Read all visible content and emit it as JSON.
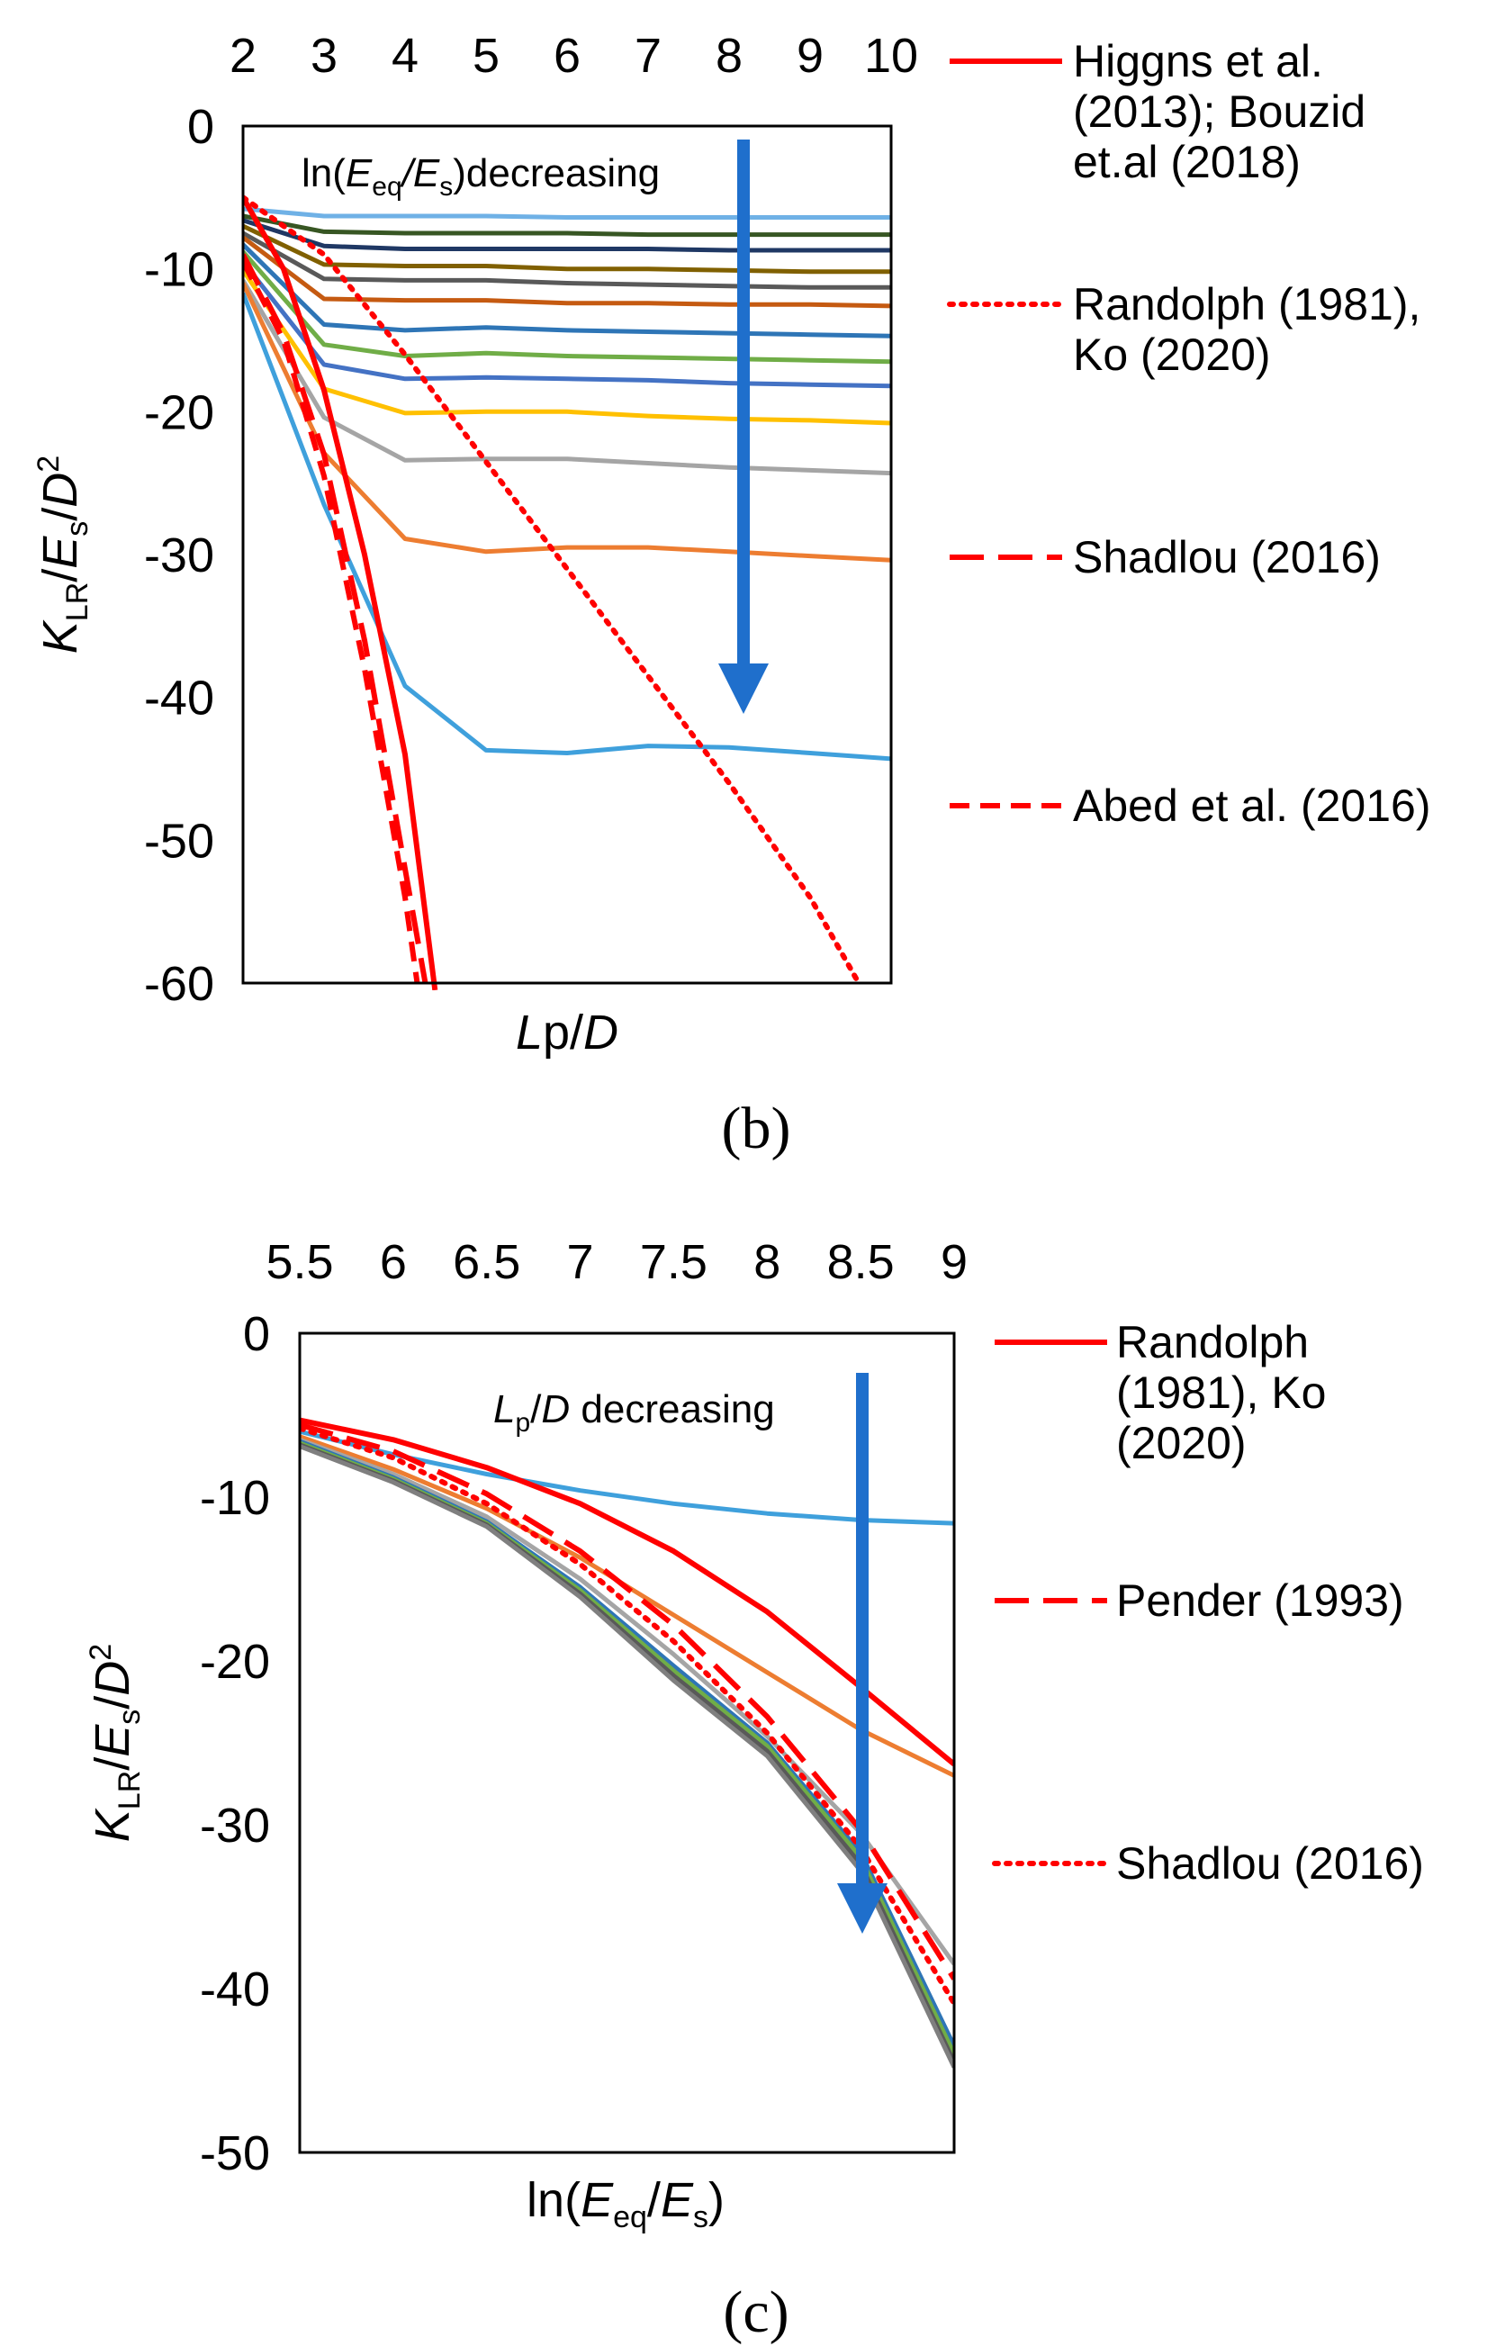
{
  "chart_data": [
    {
      "type": "line",
      "panel_label": "(b)",
      "x_axis": {
        "label_italic": "L",
        "label_rest": "p/",
        "label_italic2": "D",
        "range": [
          2,
          10
        ],
        "ticks": [
          "2",
          "3",
          "4",
          "5",
          "6",
          "7",
          "8",
          "9",
          "10"
        ],
        "tick_position": "top"
      },
      "y_axis": {
        "label_parts": [
          "K",
          "LR",
          "/",
          "E",
          "s",
          "/",
          "D",
          "2"
        ],
        "range": [
          -60,
          0
        ],
        "ticks": [
          "0",
          "-10",
          "-20",
          "-30",
          "-40",
          "-50",
          "-60"
        ]
      },
      "annotation": {
        "prefix": "ln(",
        "italic": "E",
        "sub1": "eq",
        "slash": "/",
        "italic2": "E",
        "sub2": "s",
        "suffix": ")decreasing"
      },
      "arrow_color": "#1f6fcc",
      "grid": false,
      "legend_position": "right",
      "series": [
        {
          "color": "#6fb1e6",
          "style": "solid",
          "x": [
            2,
            3,
            4,
            5,
            6,
            7,
            8,
            9,
            10
          ],
          "y": [
            -5.8,
            -6.3,
            -6.3,
            -6.3,
            -6.4,
            -6.4,
            -6.4,
            -6.4,
            -6.4
          ]
        },
        {
          "color": "#375623",
          "style": "solid",
          "x": [
            2,
            3,
            4,
            5,
            6,
            7,
            8,
            9,
            10
          ],
          "y": [
            -6.3,
            -7.4,
            -7.5,
            -7.5,
            -7.5,
            -7.6,
            -7.6,
            -7.6,
            -7.6
          ]
        },
        {
          "color": "#1f3864",
          "style": "solid",
          "x": [
            2,
            3,
            4,
            5,
            6,
            7,
            8,
            9,
            10
          ],
          "y": [
            -6.6,
            -8.4,
            -8.6,
            -8.6,
            -8.6,
            -8.6,
            -8.7,
            -8.7,
            -8.7
          ]
        },
        {
          "color": "#806000",
          "style": "solid",
          "x": [
            2,
            3,
            4,
            5,
            6,
            7,
            8,
            9,
            10
          ],
          "y": [
            -7.0,
            -9.7,
            -9.8,
            -9.8,
            -10.0,
            -10.0,
            -10.1,
            -10.2,
            -10.2
          ]
        },
        {
          "color": "#595959",
          "style": "solid",
          "x": [
            2,
            3,
            4,
            5,
            6,
            7,
            8,
            9,
            10
          ],
          "y": [
            -7.5,
            -10.7,
            -10.8,
            -10.8,
            -11.0,
            -11.1,
            -11.2,
            -11.3,
            -11.3
          ]
        },
        {
          "color": "#c55a11",
          "style": "solid",
          "x": [
            2,
            3,
            4,
            5,
            6,
            7,
            8,
            9,
            10
          ],
          "y": [
            -7.8,
            -12.1,
            -12.2,
            -12.2,
            -12.4,
            -12.4,
            -12.5,
            -12.5,
            -12.6
          ]
        },
        {
          "color": "#2e75b6",
          "style": "solid",
          "x": [
            2,
            3,
            4,
            5,
            6,
            7,
            8,
            9,
            10
          ],
          "y": [
            -8.3,
            -13.9,
            -14.3,
            -14.1,
            -14.3,
            -14.4,
            -14.5,
            -14.6,
            -14.7
          ]
        },
        {
          "color": "#70ad47",
          "style": "solid",
          "x": [
            2,
            3,
            4,
            5,
            6,
            7,
            8,
            9,
            10
          ],
          "y": [
            -8.8,
            -15.3,
            -16.1,
            -15.9,
            -16.1,
            -16.2,
            -16.3,
            -16.4,
            -16.5
          ]
        },
        {
          "color": "#4472c4",
          "style": "solid",
          "x": [
            2,
            3,
            4,
            5,
            6,
            7,
            8,
            9,
            10
          ],
          "y": [
            -9.5,
            -16.7,
            -17.7,
            -17.6,
            -17.7,
            -17.8,
            -18.0,
            -18.1,
            -18.2
          ]
        },
        {
          "color": "#ffc000",
          "style": "solid",
          "x": [
            2,
            3,
            4,
            5,
            6,
            7,
            8,
            9,
            10
          ],
          "y": [
            -10.1,
            -18.4,
            -20.1,
            -20.0,
            -20.0,
            -20.3,
            -20.5,
            -20.6,
            -20.8
          ]
        },
        {
          "color": "#a5a5a5",
          "style": "solid",
          "x": [
            2,
            3,
            4,
            5,
            6,
            7,
            8,
            9,
            10
          ],
          "y": [
            -10.8,
            -20.4,
            -23.4,
            -23.3,
            -23.3,
            -23.6,
            -23.9,
            -24.1,
            -24.3
          ]
        },
        {
          "color": "#ed7d31",
          "style": "solid",
          "x": [
            2,
            3,
            4,
            5,
            6,
            7,
            8,
            9,
            10
          ],
          "y": [
            -11.0,
            -22.9,
            -28.9,
            -29.8,
            -29.5,
            -29.5,
            -29.8,
            -30.1,
            -30.4
          ]
        },
        {
          "color": "#3fa0dc",
          "style": "solid",
          "x": [
            2,
            3,
            4,
            5,
            6,
            7,
            8,
            9,
            10
          ],
          "y": [
            -11.7,
            -26.5,
            -39.2,
            -43.7,
            -43.9,
            -43.4,
            -43.5,
            -43.9,
            -44.3
          ]
        },
        {
          "name": "Higgns et al. (2013);  Bouzid et.al (2018)",
          "legend_lines": [
            "Higgns et al.",
            "(2013);  Bouzid",
            "et.al (2018)"
          ],
          "color": "#ff0000",
          "style": "solid",
          "x": [
            2,
            2.5,
            3,
            3.5,
            4,
            4.37
          ],
          "y": [
            -5.0,
            -10.0,
            -18.5,
            -30.0,
            -44.0,
            -60.5
          ]
        },
        {
          "name": "Randolph (1981), Ko (2020)",
          "legend_lines": [
            "Randolph (1981),",
            "Ko (2020)"
          ],
          "color": "#ff0000",
          "style": "dotted",
          "x": [
            2,
            3,
            4,
            5,
            6,
            7,
            8,
            9,
            9.6
          ],
          "y": [
            -5.0,
            -9.0,
            -16.0,
            -23.5,
            -31.0,
            -38.5,
            -46.0,
            -54.0,
            -60.0
          ]
        },
        {
          "name": "Shadlou  (2016)",
          "legend_lines": [
            "Shadlou  (2016)"
          ],
          "color": "#ff0000",
          "style": "longdash",
          "x": [
            2,
            2.5,
            3,
            3.5,
            4,
            4.25
          ],
          "y": [
            -9.0,
            -14.5,
            -23.0,
            -36.0,
            -52.0,
            -60.0
          ]
        },
        {
          "name": "Abed et al. (2016)",
          "legend_lines": [
            "Abed et al. (2016)"
          ],
          "color": "#ff0000",
          "style": "dash",
          "x": [
            2,
            2.5,
            3,
            3.5,
            4,
            4.15
          ],
          "y": [
            -9.5,
            -15.0,
            -24.5,
            -38.0,
            -54.0,
            -60.0
          ]
        }
      ]
    },
    {
      "type": "line",
      "panel_label": "(c)",
      "x_axis": {
        "label_prefix": "ln(",
        "label_italic": "E",
        "label_sub": "eq",
        "label_slash": "/",
        "label_italic2": "E",
        "label_sub2": "s",
        "label_suffix": ")",
        "range": [
          5.5,
          9
        ],
        "ticks": [
          "5.5",
          "6",
          "6.5",
          "7",
          "7.5",
          "8",
          "8.5",
          "9"
        ],
        "tick_position": "top"
      },
      "y_axis": {
        "label_parts": [
          "K",
          "LR",
          "/",
          "E",
          "s",
          "/",
          "D",
          "2"
        ],
        "range": [
          -50,
          0
        ],
        "ticks": [
          "0",
          "-10",
          "-20",
          "-30",
          "-40",
          "-50"
        ]
      },
      "annotation": {
        "italic": "L",
        "sub1": "p",
        "slash": "/",
        "italic2": "D",
        "suffix": " decreasing"
      },
      "arrow_color": "#1f6fcc",
      "grid": false,
      "legend_position": "right",
      "series": [
        {
          "color": "#3fa0dc",
          "style": "solid",
          "x": [
            5.5,
            6,
            6.5,
            7,
            7.5,
            8,
            8.5,
            9
          ],
          "y": [
            -6.0,
            -7.4,
            -8.6,
            -9.6,
            -10.4,
            -11.0,
            -11.4,
            -11.6
          ]
        },
        {
          "color": "#ed7d31",
          "style": "solid",
          "x": [
            5.5,
            6,
            6.5,
            7,
            7.5,
            8,
            8.5,
            9
          ],
          "y": [
            -6.3,
            -8.3,
            -10.7,
            -13.7,
            -17.2,
            -20.7,
            -24.2,
            -27.0
          ]
        },
        {
          "color": "#a5a5a5",
          "style": "solid",
          "x": [
            5.5,
            6,
            6.5,
            7,
            7.5,
            8,
            8.5,
            9
          ],
          "y": [
            -6.5,
            -8.6,
            -11.2,
            -15.0,
            -19.6,
            -24.6,
            -30.5,
            -38.5
          ]
        },
        {
          "color": "#2e75b6",
          "style": "solid",
          "x": [
            5.5,
            6,
            6.5,
            7,
            7.5,
            8,
            8.5,
            9
          ],
          "y": [
            -6.6,
            -8.8,
            -11.5,
            -15.5,
            -20.3,
            -25.0,
            -31.7,
            -43.5
          ]
        },
        {
          "color": "#70ad47",
          "style": "solid",
          "x": [
            5.5,
            6,
            6.5,
            7,
            7.5,
            8,
            8.5,
            9
          ],
          "y": [
            -6.7,
            -8.9,
            -11.6,
            -15.7,
            -20.6,
            -25.2,
            -32.0,
            -44.0
          ]
        },
        {
          "color": "#595959",
          "style": "solid",
          "x": [
            5.5,
            6,
            6.5,
            7,
            7.5,
            8,
            8.5,
            9
          ],
          "y": [
            -6.8,
            -9.0,
            -11.7,
            -15.9,
            -20.9,
            -25.5,
            -32.4,
            -44.5
          ]
        },
        {
          "color": "#7f7f7f",
          "style": "solid",
          "x": [
            5.5,
            6,
            6.5,
            7,
            7.5,
            8,
            8.5,
            9
          ],
          "y": [
            -6.9,
            -9.1,
            -11.8,
            -16.1,
            -21.2,
            -25.8,
            -32.8,
            -44.8
          ]
        },
        {
          "name": "Randolph (1981), Ko (2020)",
          "legend_lines": [
            "Randolph",
            "(1981), Ko",
            "(2020)"
          ],
          "color": "#ff0000",
          "style": "solid",
          "x": [
            5.5,
            6,
            6.5,
            7,
            7.5,
            8,
            8.5,
            9
          ],
          "y": [
            -5.3,
            -6.5,
            -8.2,
            -10.4,
            -13.3,
            -17.0,
            -21.6,
            -26.3
          ]
        },
        {
          "name": "Pender (1993)",
          "legend_lines": [
            "Pender (1993)"
          ],
          "color": "#ff0000",
          "style": "longdash",
          "x": [
            5.5,
            6,
            6.5,
            7,
            7.5,
            8,
            8.5,
            9
          ],
          "y": [
            -5.6,
            -7.2,
            -9.8,
            -13.3,
            -17.8,
            -23.4,
            -30.3,
            -39.4
          ]
        },
        {
          "name": "Shadlou (2016)",
          "legend_lines": [
            "Shadlou (2016)"
          ],
          "color": "#ff0000",
          "style": "dotted",
          "x": [
            5.5,
            6,
            6.5,
            7,
            7.5,
            8,
            8.5,
            9
          ],
          "y": [
            -5.8,
            -7.6,
            -10.4,
            -14.1,
            -18.8,
            -24.4,
            -31.4,
            -40.9
          ]
        }
      ]
    }
  ]
}
